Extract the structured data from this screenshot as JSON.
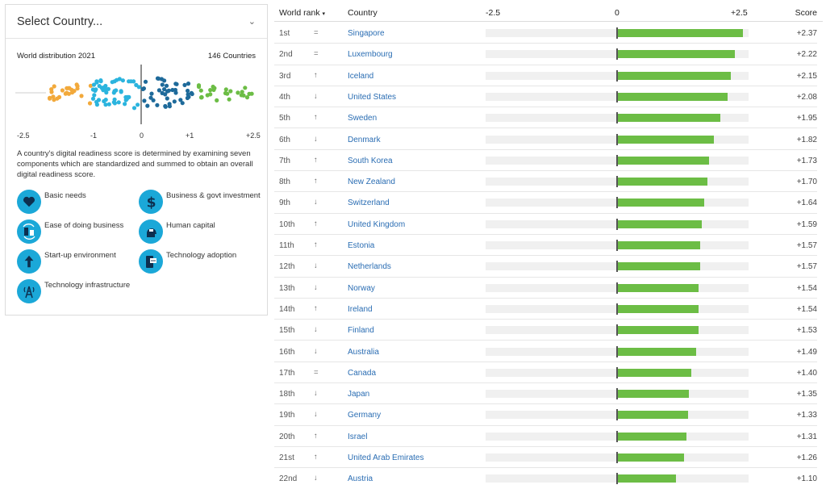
{
  "selector": {
    "placeholder": "Select Country..."
  },
  "distribution": {
    "title": "World distribution 2021",
    "count_label": "146 Countries",
    "axis_ticks": [
      "-2.5",
      "-1",
      "0",
      "+1",
      "+2.5"
    ]
  },
  "description": "A country's digital readiness score is determined by examining seven components which are standardized and summed to obtain an overall digital readiness score.",
  "components": [
    {
      "label": "Basic needs",
      "icon": "heart-icon"
    },
    {
      "label": "Business & govt investment",
      "icon": "dollar-icon"
    },
    {
      "label": "Ease of doing business",
      "icon": "exchange-icon"
    },
    {
      "label": "Human capital",
      "icon": "head-icon"
    },
    {
      "label": "Start-up environment",
      "icon": "arrow-up-icon"
    },
    {
      "label": "Technology adoption",
      "icon": "phone-chat-icon"
    },
    {
      "label": "Technology infrastructure",
      "icon": "antenna-icon"
    }
  ],
  "table": {
    "headers": {
      "rank": "World rank",
      "sort_indicator": "▾",
      "country": "Country",
      "min": "-2.5",
      "zero": "0",
      "max": "+2.5",
      "score": "Score"
    },
    "colors": {
      "bar": "#6cbd45",
      "link": "#2a6db3"
    },
    "rows": [
      {
        "rank": "1st",
        "trend": "=",
        "country": "Singapore",
        "score": "+2.37",
        "value": 2.37
      },
      {
        "rank": "2nd",
        "trend": "=",
        "country": "Luxembourg",
        "score": "+2.22",
        "value": 2.22
      },
      {
        "rank": "3rd",
        "trend": "↑",
        "country": "Iceland",
        "score": "+2.15",
        "value": 2.15
      },
      {
        "rank": "4th",
        "trend": "↓",
        "country": "United States",
        "score": "+2.08",
        "value": 2.08
      },
      {
        "rank": "5th",
        "trend": "↑",
        "country": "Sweden",
        "score": "+1.95",
        "value": 1.95
      },
      {
        "rank": "6th",
        "trend": "↓",
        "country": "Denmark",
        "score": "+1.82",
        "value": 1.82
      },
      {
        "rank": "7th",
        "trend": "↑",
        "country": "South Korea",
        "score": "+1.73",
        "value": 1.73
      },
      {
        "rank": "8th",
        "trend": "↑",
        "country": "New Zealand",
        "score": "+1.70",
        "value": 1.7
      },
      {
        "rank": "9th",
        "trend": "↓",
        "country": "Switzerland",
        "score": "+1.64",
        "value": 1.64
      },
      {
        "rank": "10th",
        "trend": "↑",
        "country": "United Kingdom",
        "score": "+1.59",
        "value": 1.59
      },
      {
        "rank": "11th",
        "trend": "↑",
        "country": "Estonia",
        "score": "+1.57",
        "value": 1.57
      },
      {
        "rank": "12th",
        "trend": "↓",
        "country": "Netherlands",
        "score": "+1.57",
        "value": 1.57
      },
      {
        "rank": "13th",
        "trend": "↓",
        "country": "Norway",
        "score": "+1.54",
        "value": 1.54
      },
      {
        "rank": "14th",
        "trend": "↑",
        "country": "Ireland",
        "score": "+1.54",
        "value": 1.54
      },
      {
        "rank": "15th",
        "trend": "↓",
        "country": "Finland",
        "score": "+1.53",
        "value": 1.53
      },
      {
        "rank": "16th",
        "trend": "↓",
        "country": "Australia",
        "score": "+1.49",
        "value": 1.49
      },
      {
        "rank": "17th",
        "trend": "=",
        "country": "Canada",
        "score": "+1.40",
        "value": 1.4
      },
      {
        "rank": "18th",
        "trend": "↓",
        "country": "Japan",
        "score": "+1.35",
        "value": 1.35
      },
      {
        "rank": "19th",
        "trend": "↓",
        "country": "Germany",
        "score": "+1.33",
        "value": 1.33
      },
      {
        "rank": "20th",
        "trend": "↑",
        "country": "Israel",
        "score": "+1.31",
        "value": 1.31
      },
      {
        "rank": "21st",
        "trend": "↑",
        "country": "United Arab Emirates",
        "score": "+1.26",
        "value": 1.26
      },
      {
        "rank": "22nd",
        "trend": "↓",
        "country": "Austria",
        "score": "+1.10",
        "value": 1.1
      }
    ]
  }
}
